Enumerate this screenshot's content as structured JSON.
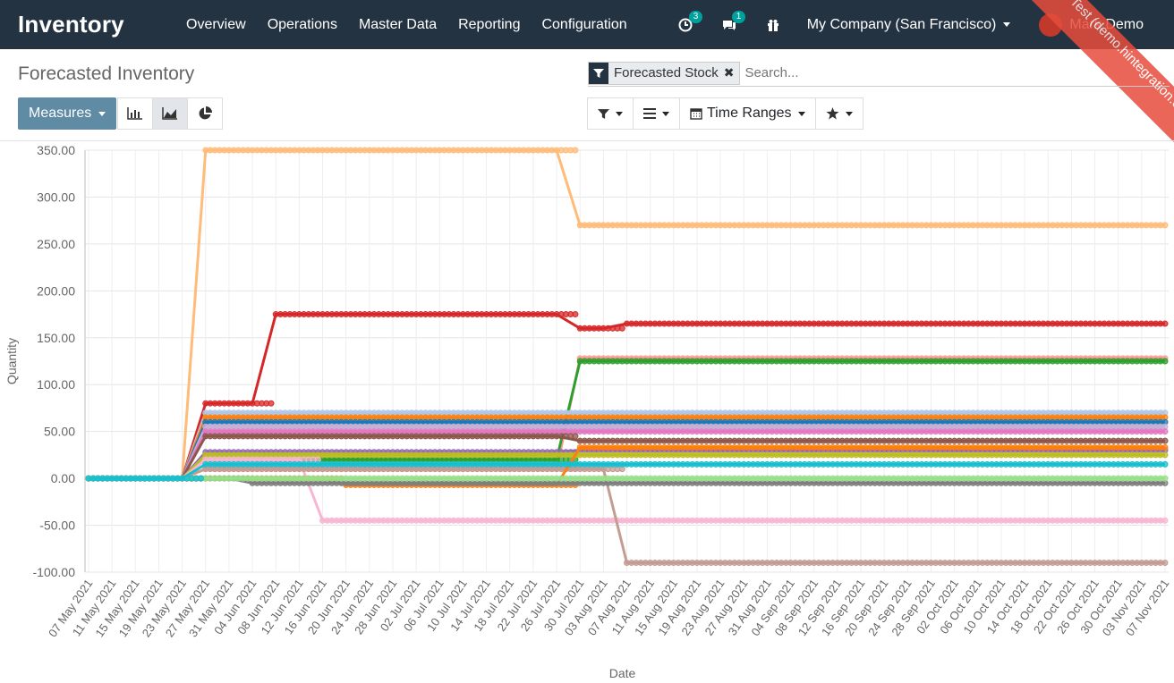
{
  "app": {
    "name": "Inventory"
  },
  "menu": [
    "Overview",
    "Operations",
    "Master Data",
    "Reporting",
    "Configuration"
  ],
  "systray": {
    "activity_count": "3",
    "messages_count": "1",
    "company": "My Company (San Francisco)",
    "user": "Mark Demo"
  },
  "ribbon": {
    "text": "Sunpop Test (demo.hintegration.com)"
  },
  "breadcrumb": "Forecasted Inventory",
  "search": {
    "facet": "Forecasted Stock",
    "placeholder": "Search..."
  },
  "toolbar": {
    "measures": "Measures",
    "time_ranges": "Time Ranges"
  },
  "icons": [
    "calendar-plus-icon",
    "comments-icon",
    "gift-icon",
    "filter-icon",
    "bars-icon",
    "calendar-icon",
    "star-icon",
    "bar-chart-icon",
    "area-chart-icon",
    "pie-chart-icon"
  ],
  "chart_data": {
    "type": "line",
    "xlabel": "Date",
    "ylabel": "Quantity",
    "ylim": [
      -100,
      350
    ],
    "yticks": [
      "350.00",
      "300.00",
      "250.00",
      "200.00",
      "150.00",
      "100.00",
      "50.00",
      "0.00",
      "-50.00",
      "-100.00"
    ],
    "x": [
      "07 May 2021",
      "11 May 2021",
      "15 May 2021",
      "19 May 2021",
      "23 May 2021",
      "27 May 2021",
      "31 May 2021",
      "04 Jun 2021",
      "08 Jun 2021",
      "12 Jun 2021",
      "16 Jun 2021",
      "20 Jun 2021",
      "24 Jun 2021",
      "28 Jun 2021",
      "02 Jul 2021",
      "06 Jul 2021",
      "10 Jul 2021",
      "14 Jul 2021",
      "18 Jul 2021",
      "22 Jul 2021",
      "26 Jul 2021",
      "30 Jul 2021",
      "03 Aug 2021",
      "07 Aug 2021",
      "11 Aug 2021",
      "15 Aug 2021",
      "19 Aug 2021",
      "23 Aug 2021",
      "27 Aug 2021",
      "31 Aug 2021",
      "04 Sep 2021",
      "08 Sep 2021",
      "12 Sep 2021",
      "16 Sep 2021",
      "20 Sep 2021",
      "24 Sep 2021",
      "28 Sep 2021",
      "02 Oct 2021",
      "06 Oct 2021",
      "10 Oct 2021",
      "14 Oct 2021",
      "18 Oct 2021",
      "22 Oct 2021",
      "26 Oct 2021",
      "30 Oct 2021",
      "03 Nov 2021",
      "07 Nov 2021"
    ],
    "grid": true,
    "series": [
      {
        "color": "#ffbb78",
        "values": [
          0,
          0,
          0,
          0,
          0,
          350,
          350,
          350,
          350,
          350,
          350,
          350,
          350,
          350,
          350,
          350,
          350,
          350,
          350,
          350,
          350,
          270,
          270,
          270,
          270,
          270,
          270,
          270,
          270,
          270,
          270,
          270,
          270,
          270,
          270,
          270,
          270,
          270,
          270,
          270,
          270,
          270,
          270,
          270,
          270,
          270,
          270
        ]
      },
      {
        "color": "#d62728",
        "values": [
          0,
          0,
          0,
          0,
          0,
          80,
          80,
          80,
          175,
          175,
          175,
          175,
          175,
          175,
          175,
          175,
          175,
          175,
          175,
          175,
          175,
          160,
          160,
          165,
          165,
          165,
          165,
          165,
          165,
          165,
          165,
          165,
          165,
          165,
          165,
          165,
          165,
          165,
          165,
          165,
          165,
          165,
          165,
          165,
          165,
          165,
          165
        ]
      },
      {
        "color": "#ff9896",
        "values": [
          0,
          0,
          0,
          0,
          0,
          10,
          10,
          10,
          10,
          10,
          10,
          10,
          10,
          10,
          10,
          10,
          10,
          10,
          10,
          10,
          10,
          128,
          128,
          128,
          128,
          128,
          128,
          128,
          128,
          128,
          128,
          128,
          128,
          128,
          128,
          128,
          128,
          128,
          128,
          128,
          128,
          128,
          128,
          128,
          128,
          128,
          128
        ]
      },
      {
        "color": "#2ca02c",
        "values": [
          0,
          0,
          0,
          0,
          0,
          20,
          20,
          20,
          20,
          20,
          20,
          20,
          20,
          20,
          20,
          20,
          20,
          20,
          20,
          20,
          20,
          125,
          125,
          125,
          125,
          125,
          125,
          125,
          125,
          125,
          125,
          125,
          125,
          125,
          125,
          125,
          125,
          125,
          125,
          125,
          125,
          125,
          125,
          125,
          125,
          125,
          125
        ]
      },
      {
        "color": "#aec7e8",
        "values": [
          0,
          0,
          0,
          0,
          0,
          70,
          70,
          70,
          70,
          70,
          70,
          70,
          70,
          70,
          70,
          70,
          70,
          70,
          70,
          70,
          70,
          70,
          70,
          70,
          70,
          70,
          70,
          70,
          70,
          70,
          70,
          70,
          70,
          70,
          70,
          70,
          70,
          70,
          70,
          70,
          70,
          70,
          70,
          70,
          70,
          70,
          70
        ]
      },
      {
        "color": "#ff7f0e",
        "values": [
          0,
          0,
          0,
          0,
          0,
          65,
          65,
          65,
          65,
          65,
          65,
          65,
          65,
          65,
          65,
          65,
          65,
          65,
          65,
          65,
          65,
          65,
          65,
          65,
          65,
          65,
          65,
          65,
          65,
          65,
          65,
          65,
          65,
          65,
          65,
          65,
          65,
          65,
          65,
          65,
          65,
          65,
          65,
          65,
          65,
          65,
          65
        ]
      },
      {
        "color": "#1f77b4",
        "values": [
          0,
          0,
          0,
          0,
          0,
          60,
          60,
          60,
          60,
          60,
          60,
          60,
          60,
          60,
          60,
          60,
          60,
          60,
          60,
          60,
          60,
          60,
          60,
          60,
          60,
          60,
          60,
          60,
          60,
          60,
          60,
          60,
          60,
          60,
          60,
          60,
          60,
          60,
          60,
          60,
          60,
          60,
          60,
          60,
          60,
          60,
          60
        ]
      },
      {
        "color": "#c5b0d5",
        "values": [
          0,
          0,
          0,
          0,
          0,
          55,
          55,
          55,
          55,
          55,
          55,
          55,
          55,
          55,
          55,
          55,
          55,
          55,
          55,
          55,
          55,
          55,
          55,
          55,
          55,
          55,
          55,
          55,
          55,
          55,
          55,
          55,
          55,
          55,
          55,
          55,
          55,
          55,
          55,
          55,
          55,
          55,
          55,
          55,
          55,
          55,
          55
        ]
      },
      {
        "color": "#e377c2",
        "values": [
          0,
          0,
          0,
          0,
          0,
          50,
          50,
          50,
          50,
          50,
          50,
          50,
          50,
          50,
          50,
          50,
          50,
          50,
          50,
          50,
          50,
          50,
          50,
          50,
          50,
          50,
          50,
          50,
          50,
          50,
          50,
          50,
          50,
          50,
          50,
          50,
          50,
          50,
          50,
          50,
          50,
          50,
          50,
          50,
          50,
          50,
          50
        ]
      },
      {
        "color": "#8c564b",
        "values": [
          0,
          0,
          0,
          0,
          0,
          45,
          45,
          45,
          45,
          45,
          45,
          45,
          45,
          45,
          45,
          45,
          45,
          45,
          45,
          45,
          45,
          40,
          40,
          40,
          40,
          40,
          40,
          40,
          40,
          40,
          40,
          40,
          40,
          40,
          40,
          40,
          40,
          40,
          40,
          40,
          40,
          40,
          40,
          40,
          40,
          40,
          40
        ]
      },
      {
        "color": "#9467bd",
        "values": [
          0,
          0,
          0,
          0,
          0,
          28,
          28,
          28,
          28,
          28,
          28,
          28,
          28,
          28,
          28,
          28,
          28,
          28,
          28,
          28,
          28,
          30,
          30,
          30,
          30,
          30,
          30,
          30,
          30,
          30,
          30,
          30,
          30,
          30,
          30,
          30,
          30,
          30,
          30,
          30,
          30,
          30,
          30,
          30,
          30,
          30,
          30
        ]
      },
      {
        "color": "#bcbd22",
        "values": [
          0,
          0,
          0,
          0,
          0,
          25,
          25,
          25,
          25,
          25,
          25,
          25,
          25,
          25,
          25,
          25,
          25,
          25,
          25,
          25,
          25,
          25,
          25,
          25,
          25,
          25,
          25,
          25,
          25,
          25,
          25,
          25,
          25,
          25,
          25,
          25,
          25,
          25,
          25,
          25,
          25,
          25,
          25,
          25,
          25,
          25,
          25
        ]
      },
      {
        "color": "#f7b6d2",
        "values": [
          0,
          0,
          0,
          0,
          0,
          20,
          20,
          20,
          20,
          20,
          -45,
          -45,
          -45,
          -45,
          -45,
          -45,
          -45,
          -45,
          -45,
          -45,
          -45,
          -45,
          -45,
          -45,
          -45,
          -45,
          -45,
          -45,
          -45,
          -45,
          -45,
          -45,
          -45,
          -45,
          -45,
          -45,
          -45,
          -45,
          -45,
          -45,
          -45,
          -45,
          -45,
          -45,
          -45,
          -45,
          -45
        ]
      },
      {
        "color": "#c49c94",
        "values": [
          0,
          0,
          0,
          0,
          0,
          10,
          10,
          10,
          10,
          10,
          10,
          10,
          10,
          10,
          10,
          10,
          10,
          10,
          10,
          10,
          10,
          10,
          10,
          -90,
          -90,
          -90,
          -90,
          -90,
          -90,
          -90,
          -90,
          -90,
          -90,
          -90,
          -90,
          -90,
          -90,
          -90,
          -90,
          -90,
          -90,
          -90,
          -90,
          -90,
          -90,
          -90,
          -90
        ]
      },
      {
        "color": "#ff7f0e",
        "values": [
          0,
          0,
          0,
          0,
          0,
          0,
          0,
          0,
          0,
          0,
          0,
          -7,
          -7,
          -7,
          -7,
          -7,
          -7,
          -7,
          -7,
          -7,
          -7,
          33,
          33,
          33,
          33,
          33,
          33,
          33,
          33,
          33,
          33,
          33,
          33,
          33,
          33,
          33,
          33,
          33,
          33,
          33,
          33,
          33,
          33,
          33,
          33,
          33,
          33
        ]
      },
      {
        "color": "#7f7f7f",
        "values": [
          0,
          0,
          0,
          0,
          0,
          0,
          0,
          -5,
          -5,
          -5,
          -5,
          -5,
          -5,
          -5,
          -5,
          -5,
          -5,
          -5,
          -5,
          -5,
          -5,
          -5,
          -5,
          -5,
          -5,
          -5,
          -5,
          -5,
          -5,
          -5,
          -5,
          -5,
          -5,
          -5,
          -5,
          -5,
          -5,
          -5,
          -5,
          -5,
          -5,
          -5,
          -5,
          -5,
          -5,
          -5,
          -5
        ]
      },
      {
        "color": "#98df8a",
        "values": [
          0,
          0,
          0,
          0,
          0,
          0,
          0,
          0,
          0,
          0,
          0,
          0,
          0,
          0,
          0,
          0,
          0,
          0,
          0,
          0,
          0,
          0,
          0,
          0,
          0,
          0,
          0,
          0,
          0,
          0,
          0,
          0,
          0,
          0,
          0,
          0,
          0,
          0,
          0,
          0,
          0,
          0,
          0,
          0,
          0,
          0,
          0
        ]
      },
      {
        "color": "#17becf",
        "values": [
          0,
          0,
          0,
          0,
          0,
          15,
          15,
          15,
          15,
          15,
          15,
          15,
          15,
          15,
          15,
          15,
          15,
          15,
          15,
          15,
          15,
          15,
          15,
          15,
          15,
          15,
          15,
          15,
          15,
          15,
          15,
          15,
          15,
          15,
          15,
          15,
          15,
          15,
          15,
          15,
          15,
          15,
          15,
          15,
          15,
          15,
          15
        ]
      }
    ]
  }
}
